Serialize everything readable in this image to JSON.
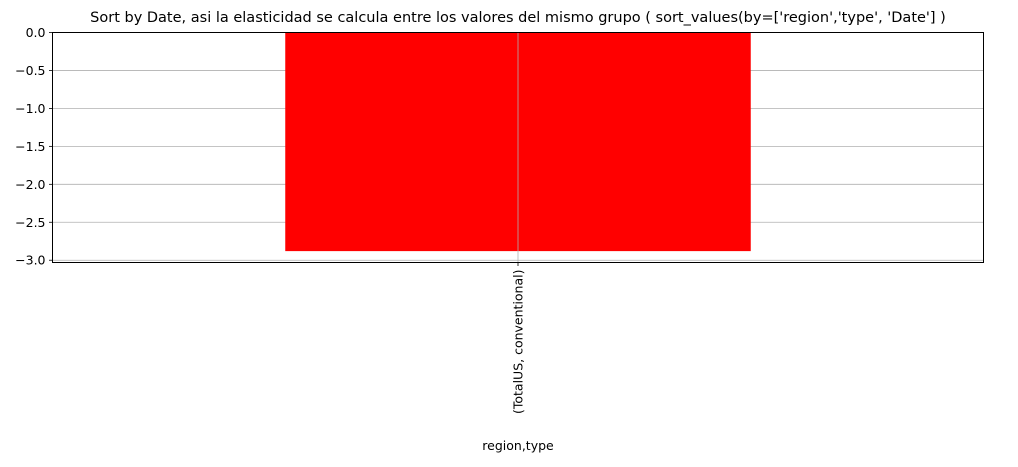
{
  "chart_data": {
    "type": "bar",
    "title": "Sort by Date, asi la elasticidad se calcula entre los valores del mismo grupo ( sort_values(by=['region','type', 'Date'] )",
    "xlabel": "region,type",
    "ylabel": "",
    "categories": [
      "(TotalUS, conventional)"
    ],
    "series": [
      {
        "values": [
          -2.88
        ]
      }
    ],
    "ylim": [
      -3.03,
      0.0
    ],
    "yticks": [
      0.0,
      -0.5,
      -1.0,
      -1.5,
      -2.0,
      -2.5,
      -3.0
    ],
    "ytick_labels": [
      "0.0",
      "−0.5",
      "−1.0",
      "−1.5",
      "−2.0",
      "−2.5",
      "−3.0"
    ],
    "grid": true,
    "bar_color": "#ff0000",
    "grid_color": "#b0b0b0"
  }
}
